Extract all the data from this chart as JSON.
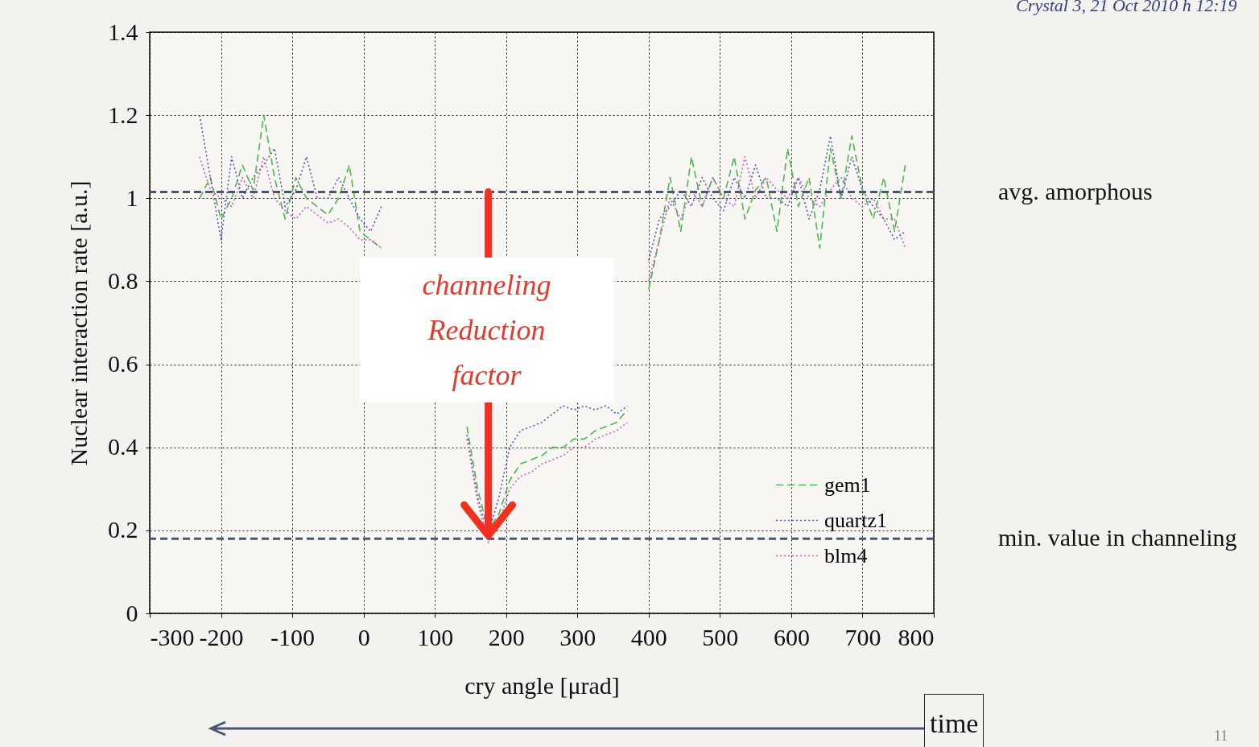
{
  "chart_data": {
    "type": "line",
    "title": "Crystal 3, 21 Oct 2010 h 12:19",
    "xlabel": "cry angle [μrad]",
    "ylabel": "Nuclear interaction rate [a.u.]",
    "x": [
      -230,
      -215,
      -200,
      -185,
      -170,
      -155,
      -140,
      -125,
      -110,
      -95,
      -80,
      -65,
      -50,
      -35,
      -20,
      -5,
      10,
      25,
      40,
      55,
      70,
      85,
      100,
      115,
      130,
      145,
      160,
      175,
      190,
      205,
      220,
      235,
      250,
      265,
      280,
      295,
      310,
      325,
      340,
      355,
      370,
      385,
      400,
      415,
      430,
      445,
      460,
      475,
      490,
      505,
      520,
      535,
      550,
      565,
      580,
      595,
      610,
      625,
      640,
      655,
      670,
      685,
      700,
      715,
      730,
      745,
      760
    ],
    "series": [
      {
        "name": "gem1",
        "color": "#4cb84c",
        "line_style": "dashed",
        "values": [
          1.0,
          1.05,
          0.95,
          1.0,
          1.08,
          1.02,
          1.2,
          1.05,
          0.95,
          1.05,
          1.0,
          0.98,
          0.96,
          1.0,
          1.08,
          0.92,
          0.9,
          0.88,
          null,
          null,
          null,
          null,
          null,
          null,
          null,
          0.45,
          0.3,
          0.2,
          0.24,
          0.32,
          0.36,
          0.37,
          0.38,
          0.4,
          0.4,
          0.42,
          0.42,
          0.44,
          0.45,
          0.46,
          0.49,
          null,
          0.78,
          0.9,
          1.05,
          0.92,
          1.1,
          0.98,
          1.05,
          1.0,
          1.1,
          0.95,
          1.02,
          1.05,
          0.92,
          1.12,
          0.98,
          1.05,
          0.88,
          1.12,
          1.0,
          1.15,
          1.02,
          0.95,
          1.05,
          0.92,
          1.08
        ]
      },
      {
        "name": "quartz1",
        "color": "#5454c0",
        "line_style": "dotted",
        "values": [
          1.2,
          1.05,
          0.9,
          1.1,
          1.0,
          1.05,
          1.08,
          1.12,
          0.98,
          1.02,
          1.1,
          1.0,
          1.0,
          1.05,
          1.0,
          0.95,
          0.92,
          0.98,
          null,
          null,
          null,
          null,
          null,
          null,
          null,
          0.43,
          0.28,
          0.19,
          0.28,
          0.4,
          0.44,
          0.45,
          0.46,
          0.48,
          0.5,
          0.49,
          0.5,
          0.49,
          0.5,
          0.48,
          0.5,
          null,
          0.85,
          0.95,
          0.98,
          1.02,
          0.98,
          1.05,
          1.0,
          0.97,
          1.05,
          1.0,
          1.08,
          1.0,
          1.0,
          0.98,
          1.05,
          0.95,
          1.02,
          1.15,
          1.0,
          1.1,
          1.02,
          0.98,
          0.95,
          0.9,
          0.92
        ]
      },
      {
        "name": "blm4",
        "color": "#c060c0",
        "line_style": "dotted",
        "values": [
          1.1,
          1.02,
          1.0,
          0.98,
          1.05,
          1.0,
          1.1,
          1.0,
          0.97,
          0.95,
          0.98,
          0.96,
          0.94,
          0.95,
          0.93,
          0.9,
          0.9,
          0.88,
          null,
          null,
          null,
          null,
          null,
          null,
          null,
          0.42,
          0.27,
          0.17,
          0.22,
          0.3,
          0.33,
          0.34,
          0.36,
          0.37,
          0.38,
          0.4,
          0.4,
          0.42,
          0.43,
          0.44,
          0.46,
          null,
          0.8,
          0.9,
          1.0,
          0.95,
          1.02,
          0.98,
          1.05,
          1.0,
          0.98,
          1.1,
          1.0,
          1.05,
          1.02,
          1.0,
          1.05,
          1.0,
          0.98,
          1.02,
          1.05,
          1.0,
          0.98,
          1.0,
          0.95,
          0.95,
          0.88
        ]
      }
    ],
    "xlim": [
      -300,
      800
    ],
    "xticks": [
      -300,
      -200,
      -100,
      0,
      100,
      200,
      300,
      400,
      500,
      600,
      700,
      800
    ],
    "ylim": [
      0,
      1.4
    ],
    "yticks": [
      0,
      0.2,
      0.4,
      0.6,
      0.8,
      1,
      1.2,
      1.4
    ],
    "grid": true,
    "legend": "bottom right",
    "ref_lines": [
      {
        "axis": "y",
        "value": 1.015,
        "label": "avg. amorphous",
        "color": "#4a5670",
        "line_style": "dashed"
      },
      {
        "axis": "y",
        "value": 0.18,
        "label": "min. value in channeling",
        "color": "#4a5670",
        "line_style": "dashed"
      }
    ],
    "annotations": [
      "channeling Reduction factor",
      "time",
      "11"
    ]
  }
}
